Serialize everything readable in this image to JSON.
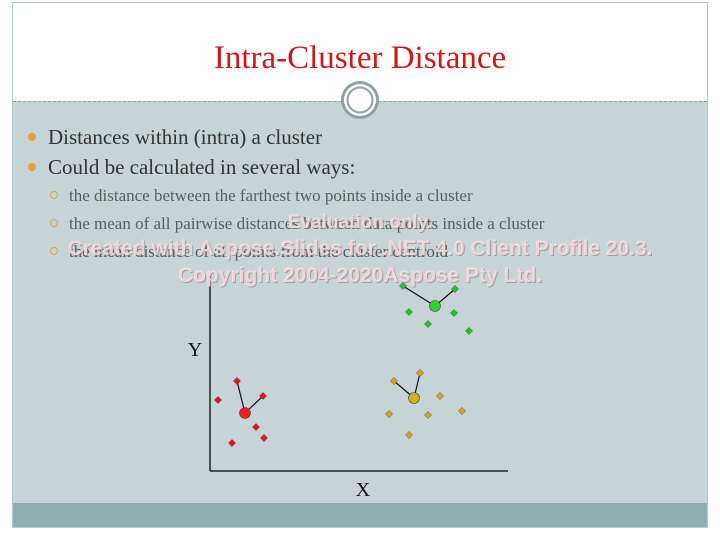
{
  "slide": {
    "title": "Intra-Cluster Distance",
    "bullets": [
      {
        "text": "Distances within (intra) a cluster"
      },
      {
        "text": "Could be calculated in several ways:"
      }
    ],
    "sub_bullets": [
      {
        "text": "the distance between the farthest two points inside a cluster"
      },
      {
        "text": "the mean of all pairwise distances between data points inside a cluster"
      },
      {
        "text": "the mean distance of all points from the cluster centroid"
      }
    ]
  },
  "diagram": {
    "x_label": "X",
    "y_label": "Y",
    "clusters": [
      {
        "name": "red",
        "color": "#e8141c",
        "centroid_color": "#ff1a1a"
      },
      {
        "name": "yellow",
        "color": "#d6a51a",
        "centroid_color": "#d9ae1e"
      },
      {
        "name": "green",
        "color": "#22c422",
        "centroid_color": "#2ad42a"
      }
    ]
  },
  "watermark": {
    "line1": "Evaluation only.",
    "line2": "Created with Aspose.Slides for .NET 4.0 Client Profile 20.3.",
    "line3": "Copyright 2004-2020Aspose Pty Ltd."
  }
}
